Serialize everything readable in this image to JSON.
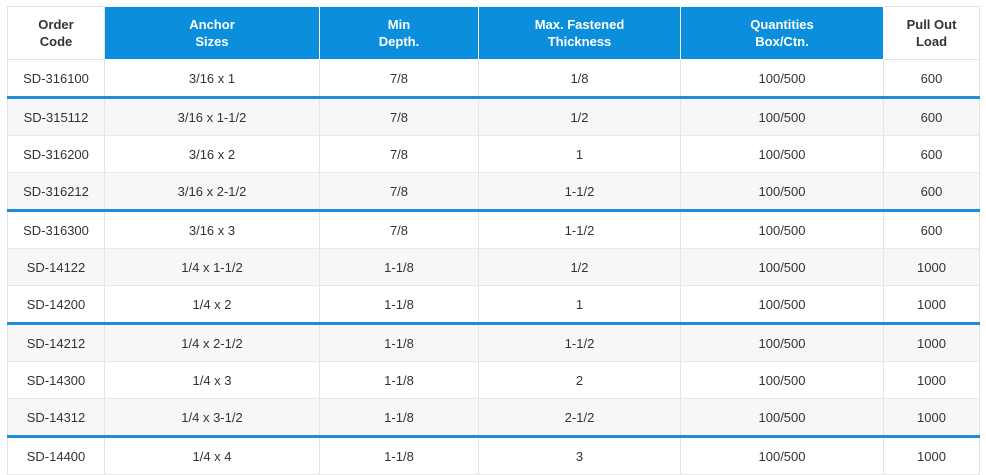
{
  "header": {
    "order_code": [
      "Order",
      "Code"
    ],
    "anchor_sizes": [
      "Anchor",
      "Sizes"
    ],
    "min_depth": [
      "Min",
      "Depth."
    ],
    "max_fastened": [
      "Max. Fastened",
      "Thickness"
    ],
    "quantities": [
      "Quantities",
      "Box/Ctn."
    ],
    "pull_out": [
      "Pull Out",
      "Load"
    ]
  },
  "rows": [
    [
      "SD-316100",
      "3/16 x 1",
      "7/8",
      "1/8",
      "100/500",
      "600"
    ],
    [
      "SD-315112",
      "3/16 x 1-1/2",
      "7/8",
      "1/2",
      "100/500",
      "600"
    ],
    [
      "SD-316200",
      "3/16 x 2",
      "7/8",
      "1",
      "100/500",
      "600"
    ],
    [
      "SD-316212",
      "3/16 x 2-1/2",
      "7/8",
      "1-1/2",
      "100/500",
      "600"
    ],
    [
      "SD-316300",
      "3/16 x 3",
      "7/8",
      "1-1/2",
      "100/500",
      "600"
    ],
    [
      "SD-14122",
      "1/4 x 1-1/2",
      "1-1/8",
      "1/2",
      "100/500",
      "1000"
    ],
    [
      "SD-14200",
      "1/4 x 2",
      "1-1/8",
      "1",
      "100/500",
      "1000"
    ],
    [
      "SD-14212",
      "1/4 x 2-1/2",
      "1-1/8",
      "1-1/2",
      "100/500",
      "1000"
    ],
    [
      "SD-14300",
      "1/4 x 3",
      "1-1/8",
      "2",
      "100/500",
      "1000"
    ],
    [
      "SD-14312",
      "1/4 x 3-1/2",
      "1-1/8",
      "2-1/2",
      "100/500",
      "1000"
    ],
    [
      "SD-14400",
      "1/4 x 4",
      "1-1/8",
      "3",
      "100/500",
      "1000"
    ]
  ],
  "colors": {
    "header_blue": "#0b8fdc",
    "separator_blue": "#1e8fd6",
    "alt_row": "#f7f7f7"
  }
}
